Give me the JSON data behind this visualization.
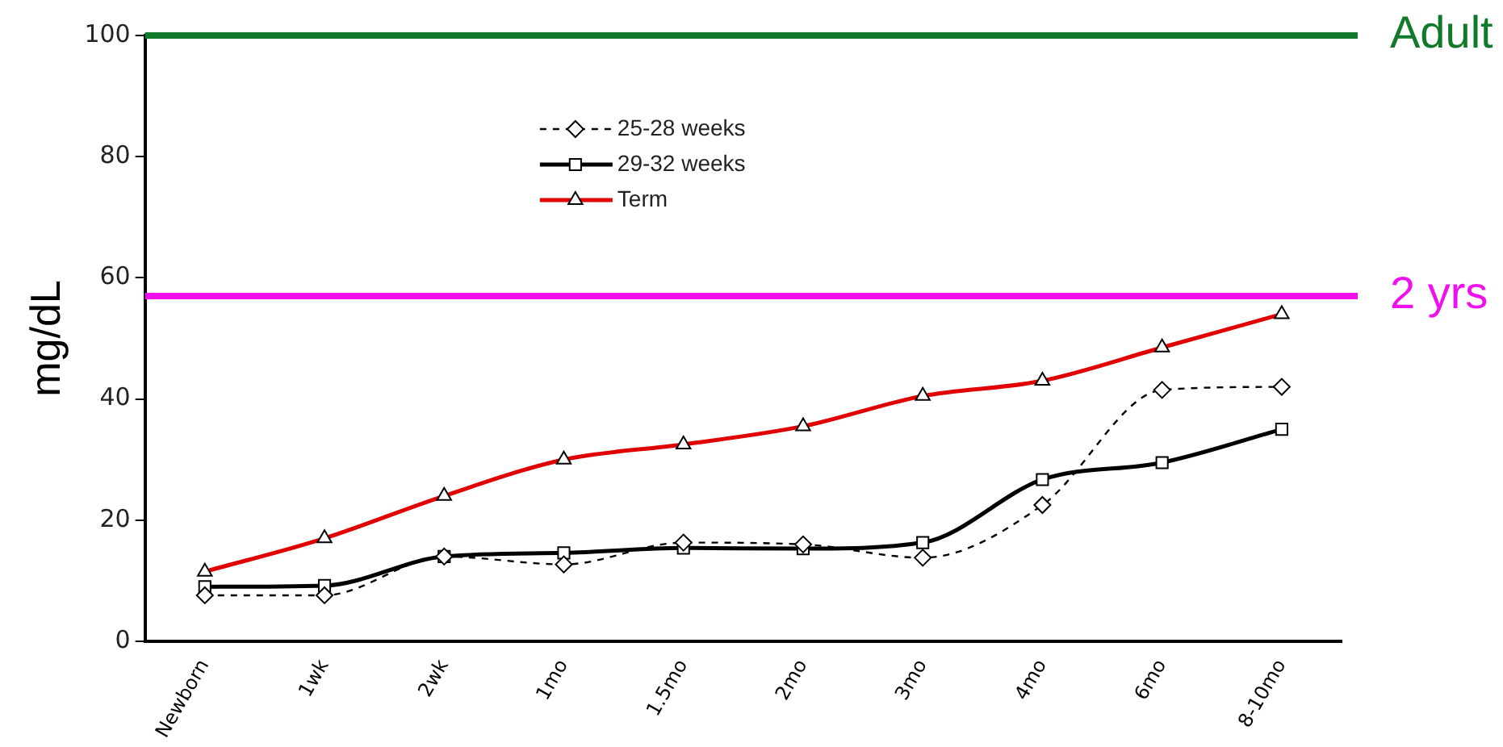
{
  "chart_data": {
    "type": "line",
    "ylabel": "mg/dL",
    "categories": [
      "Newborn",
      "1wk",
      "2wk",
      "1mo",
      "1.5mo",
      "2mo",
      "3mo",
      "4mo",
      "6mo",
      "8-10mo"
    ],
    "series": [
      {
        "name": "25-28 weeks",
        "color": "#000000",
        "marker": "diamond",
        "line_style": "dashed",
        "values": [
          7.6,
          7.6,
          14,
          12.7,
          16.3,
          16,
          13.8,
          22.5,
          41.5,
          42
        ]
      },
      {
        "name": "29-32 weeks",
        "color": "#000000",
        "marker": "square",
        "line_style": "solid",
        "values": [
          9,
          9.2,
          14,
          14.6,
          15.4,
          15.3,
          16.3,
          26.7,
          29.5,
          35
        ]
      },
      {
        "name": "Term",
        "color": "#e00000",
        "marker": "triangle",
        "line_style": "solid",
        "values": [
          11.5,
          17,
          24,
          30,
          32.5,
          35.5,
          40.5,
          43,
          48.5,
          54
        ]
      }
    ],
    "ylim": [
      0,
      100
    ],
    "yticks": [
      0,
      20,
      40,
      60,
      80,
      100
    ],
    "grid": false,
    "legend": "top",
    "ref_lines": [
      {
        "axis": "y",
        "value": 100,
        "label": "Adult",
        "color": "#117a2a"
      },
      {
        "axis": "y",
        "value": 57,
        "label": "2 yrs",
        "color": "#ee11ee"
      }
    ]
  }
}
